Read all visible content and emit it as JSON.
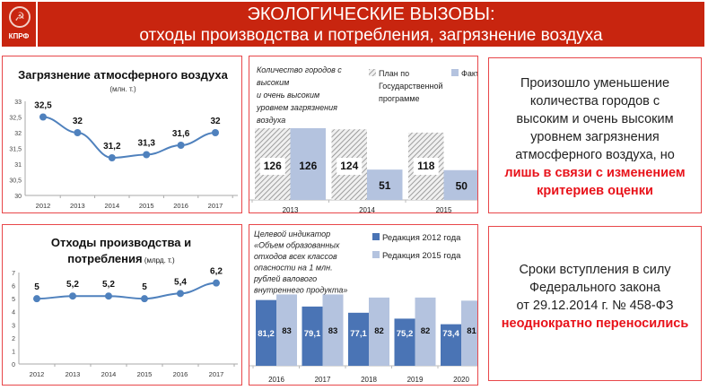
{
  "header": {
    "logo_text": "КПРФ",
    "title_line1": "ЭКОЛОГИЧЕСКИЕ ВЫЗОВЫ:",
    "title_line2": "отходы производства и потребления, загрязнение воздуха",
    "color": "#c8250f"
  },
  "chart_data": [
    {
      "type": "line",
      "title": "Загрязнение атмосферного воздуха",
      "subtitle": "(млн. т.)",
      "categories": [
        "2012",
        "2013",
        "2014",
        "2015",
        "2016",
        "2017"
      ],
      "values": [
        32.5,
        32,
        31.2,
        31.3,
        31.6,
        32
      ],
      "labels": [
        "32,5",
        "32",
        "31,2",
        "31,3",
        "31,6",
        "32"
      ],
      "yticks": [
        "30",
        "30,5",
        "31",
        "31,5",
        "32",
        "32,5",
        "33"
      ],
      "ylim": [
        30,
        33
      ],
      "color": "#4f81bd"
    },
    {
      "type": "line",
      "title": "Отходы производства и",
      "title2": "потребления",
      "subtitle": "(млрд. т.)",
      "categories": [
        "2012",
        "2013",
        "2014",
        "2015",
        "2016",
        "2017"
      ],
      "values": [
        5,
        5.2,
        5.2,
        5,
        5.4,
        6.2
      ],
      "labels": [
        "5",
        "5,2",
        "5,2",
        "5",
        "5,4",
        "6,2"
      ],
      "yticks": [
        "0",
        "1",
        "2",
        "3",
        "4",
        "5",
        "6",
        "7"
      ],
      "ylim": [
        0,
        7
      ],
      "color": "#4f81bd"
    },
    {
      "type": "bar",
      "title_lines": [
        "Количество городов с",
        "высоким",
        "и очень высоким",
        "уровнем загрязнения",
        "воздуха"
      ],
      "categories": [
        "2013",
        "2014",
        "2015"
      ],
      "series": [
        {
          "name": "План по Государственной программе",
          "name_lines": [
            "План по",
            "Государственной",
            "программе"
          ],
          "values": [
            126,
            124,
            118
          ],
          "labels": [
            "126",
            "124",
            "118"
          ]
        },
        {
          "name": "Факт",
          "name_lines": [
            "Факт"
          ],
          "values": [
            126,
            51,
            50
          ],
          "labels": [
            "126",
            "51",
            "50"
          ]
        }
      ],
      "ylim": [
        -4,
        126
      ],
      "colors": [
        "#hatch",
        "#b4c3df"
      ]
    },
    {
      "type": "bar",
      "title_lines": [
        "Целевой индикатор",
        "«Объем образованных",
        "отходов всех классов",
        "опасности на 1 млн.",
        "рублей валового",
        "внутреннего продукта»"
      ],
      "categories": [
        "2016",
        "2017",
        "2018",
        "2019",
        "2020"
      ],
      "series": [
        {
          "name": "Редакция 2012 года",
          "name_lines": [
            "Редакция 2012 года"
          ],
          "values": [
            81.2,
            79.1,
            77.1,
            75.2,
            73.4
          ],
          "labels": [
            "81,2",
            "79,1",
            "77,1",
            "75,2",
            "73,4"
          ]
        },
        {
          "name": "Редакция 2015 года",
          "name_lines": [
            "Редакция 2015 года"
          ],
          "values": [
            83,
            83,
            82,
            82,
            81
          ],
          "labels": [
            "83",
            "83",
            "82",
            "82",
            "81"
          ]
        }
      ],
      "ylim": [
        60,
        85
      ],
      "colors": [
        "#4a74b5",
        "#b4c3df"
      ]
    }
  ],
  "notes": {
    "air": {
      "lines": [
        "Произошло уменьшение",
        "количества городов с",
        "высоким и очень высоким",
        "уровнем загрязнения",
        "атмосферного воздуха, но"
      ],
      "red_lines": [
        "лишь в связи с изменением",
        "критериев оценки"
      ]
    },
    "law": {
      "lines": [
        "Сроки вступления в силу",
        "Федерального закона",
        "от 29.12.2014 г. № 458-ФЗ"
      ],
      "red_lines": [
        "неоднократно переносились"
      ]
    }
  }
}
